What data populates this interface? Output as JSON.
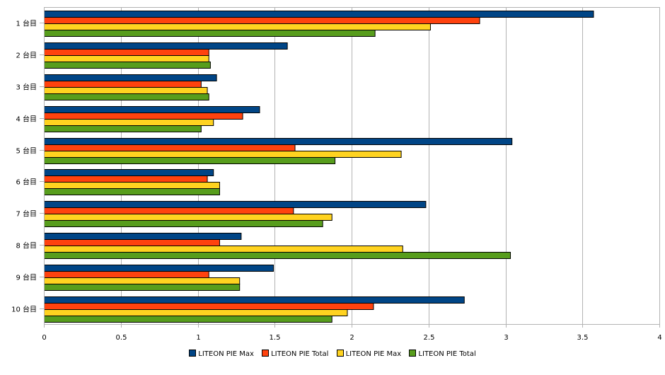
{
  "chart_data": {
    "type": "bar",
    "orientation": "horizontal",
    "title": "",
    "xlabel": "",
    "ylabel": "",
    "xlim": [
      0,
      4
    ],
    "x_ticks": [
      "0",
      "0.5",
      "1",
      "1.5",
      "2",
      "2.5",
      "3",
      "3.5",
      "4"
    ],
    "x_tick_values": [
      0,
      0.5,
      1,
      1.5,
      2,
      2.5,
      3,
      3.5,
      4
    ],
    "grid": true,
    "legend_position": "bottom",
    "categories": [
      "1 台目",
      "2 台目",
      "3 台目",
      "4 台目",
      "5 台目",
      "6 台目",
      "7 台目",
      "8 台目",
      "9 台目",
      "10 台目"
    ],
    "series": [
      {
        "name": "LITEON PIE Max",
        "color": "#004586",
        "values": [
          3.57,
          1.58,
          1.12,
          1.4,
          3.04,
          1.1,
          2.48,
          1.28,
          1.49,
          2.73
        ]
      },
      {
        "name": "LITEON PIE Total",
        "color": "#ff420e",
        "values": [
          2.83,
          1.07,
          1.02,
          1.29,
          1.63,
          1.06,
          1.62,
          1.14,
          1.07,
          2.14
        ]
      },
      {
        "name": "LITEON PIE Max",
        "color": "#ffd320",
        "values": [
          2.51,
          1.07,
          1.06,
          1.1,
          2.32,
          1.14,
          1.87,
          2.33,
          1.27,
          1.97
        ]
      },
      {
        "name": "LITEON PIE Total",
        "color": "#579d1c",
        "values": [
          2.15,
          1.08,
          1.07,
          1.02,
          1.89,
          1.14,
          1.81,
          3.03,
          1.27,
          1.87
        ]
      }
    ]
  }
}
